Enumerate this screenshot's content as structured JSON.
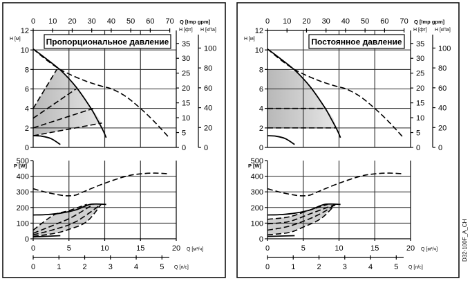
{
  "chart_data": [
    {
      "type": "line",
      "mode": "proportional",
      "title": "Пропорциональное давление",
      "head_chart": {
        "xlabel_top": "Q [Imp gpm]",
        "x_top_ticks": [
          0,
          10,
          20,
          30,
          40,
          50,
          60,
          70
        ],
        "ylabel": "H [м]",
        "y_ticks": [
          0,
          2,
          4,
          6,
          8,
          10,
          12
        ],
        "ylim": [
          0,
          12
        ],
        "xlim_m3h": [
          0,
          20
        ],
        "right_axis_ft": {
          "label": "H [фт]",
          "ticks": [
            0,
            5,
            10,
            15,
            20,
            25,
            30,
            35
          ]
        },
        "right_axis_kpa": {
          "label": "H [кПа]",
          "ticks": [
            0,
            20,
            40,
            60,
            80,
            100
          ]
        },
        "grid": true,
        "series": [
          {
            "name": "max-curve",
            "style": "solid",
            "x": [
              0,
              2,
              4,
              6,
              8,
              9,
              9.8,
              10.2
            ],
            "y": [
              10.1,
              9.0,
              7.8,
              6.2,
              4.1,
              2.8,
              1.7,
              1.0
            ]
          },
          {
            "name": "max-dashed",
            "style": "dashed",
            "x": [
              0,
              2,
              4,
              7,
              9.5,
              11,
              13,
              15,
              17,
              19
            ],
            "y": [
              10.1,
              8.9,
              7.9,
              6.9,
              6.3,
              6.0,
              5.2,
              4.0,
              2.6,
              1.0
            ]
          },
          {
            "name": "min-curve",
            "style": "solid",
            "x": [
              0,
              1.2,
              2.5,
              3.8
            ],
            "y": [
              1.2,
              1.15,
              0.9,
              0.3
            ]
          },
          {
            "name": "prop-1",
            "style": "dashed",
            "x": [
              0,
              3.3
            ],
            "y": [
              4,
              8
            ]
          },
          {
            "name": "prop-2",
            "style": "dashed",
            "x": [
              0,
              6
            ],
            "y": [
              3,
              6
            ]
          },
          {
            "name": "prop-3",
            "style": "dashed",
            "x": [
              0,
              8.4
            ],
            "y": [
              2,
              4
            ]
          },
          {
            "name": "prop-4",
            "style": "dashed",
            "x": [
              0,
              9.6
            ],
            "y": [
              1.2,
              2.5
            ]
          }
        ],
        "shaded_region": {
          "x": [
            0,
            3.3,
            4,
            6,
            8,
            9.2,
            9.6,
            0
          ],
          "y": [
            4,
            8,
            7.8,
            6.2,
            4.1,
            3.0,
            2.5,
            1.2
          ]
        }
      },
      "power_chart": {
        "ylabel": "P [W]",
        "y_ticks": [
          0,
          100,
          200,
          300,
          400,
          500
        ],
        "ylim": [
          0,
          500
        ],
        "xlabel": "Q [м³/ч]",
        "x_ticks": [
          0,
          5,
          10,
          15,
          20
        ],
        "xlim": [
          0,
          20
        ],
        "xlabel2": "Q [л/с]",
        "x2_ticks": [
          0,
          1,
          2,
          3,
          4,
          5
        ],
        "grid": true,
        "series": [
          {
            "name": "max-power-dashed",
            "style": "dashed",
            "x": [
              0,
              2,
              4,
              5,
              6,
              7,
              10,
              13,
              15,
              17,
              19
            ],
            "y": [
              320,
              295,
              278,
              275,
              280,
              300,
              355,
              400,
              415,
              420,
              415
            ]
          },
          {
            "name": "max-power",
            "style": "solid",
            "x": [
              0,
              2,
              4,
              6,
              8,
              10.2
            ],
            "y": [
              152,
              155,
              165,
              185,
              220,
              220
            ]
          },
          {
            "name": "min-power",
            "style": "solid",
            "x": [
              0,
              3.8
            ],
            "y": [
              12,
              20
            ]
          },
          {
            "name": "p-1",
            "style": "dashed",
            "x": [
              0,
              2.8,
              5,
              7.5
            ],
            "y": [
              55,
              150,
              180,
              220
            ]
          },
          {
            "name": "p-2",
            "style": "dashed",
            "x": [
              0,
              3,
              5.5,
              8.4
            ],
            "y": [
              35,
              90,
              140,
              220
            ]
          },
          {
            "name": "p-3",
            "style": "dashed",
            "x": [
              0,
              3,
              6,
              9.5
            ],
            "y": [
              25,
              60,
              110,
              220
            ]
          },
          {
            "name": "p-4",
            "style": "dashed",
            "x": [
              0,
              3,
              5,
              7.5,
              9.5
            ],
            "y": [
              15,
              35,
              60,
              110,
              220
            ]
          }
        ],
        "shaded_region": {
          "x": [
            0,
            2.8,
            5,
            7.5,
            9.5,
            9.5,
            7.5,
            5,
            3,
            0
          ],
          "y": [
            55,
            150,
            180,
            220,
            220,
            220,
            110,
            60,
            35,
            15
          ]
        }
      }
    },
    {
      "type": "line",
      "mode": "constant",
      "title": "Постоянное давление",
      "head_chart": {
        "xlabel_top": "Q [Imp gpm]",
        "x_top_ticks": [
          0,
          10,
          20,
          30,
          40,
          50,
          60,
          70
        ],
        "ylabel": "H [м]",
        "y_ticks": [
          0,
          2,
          4,
          6,
          8,
          10,
          12
        ],
        "ylim": [
          0,
          12
        ],
        "xlim_m3h": [
          0,
          20
        ],
        "right_axis_ft": {
          "label": "H [фт]",
          "ticks": [
            0,
            5,
            10,
            15,
            20,
            25,
            30,
            35
          ]
        },
        "right_axis_kpa": {
          "label": "H [кПа]",
          "ticks": [
            0,
            20,
            40,
            60,
            80,
            100
          ]
        },
        "grid": true,
        "series": [
          {
            "name": "max-curve",
            "style": "solid",
            "x": [
              0,
              2,
              4,
              6,
              8,
              9,
              9.8,
              10.2
            ],
            "y": [
              10.1,
              9.0,
              7.8,
              6.2,
              4.1,
              2.8,
              1.7,
              1.0
            ]
          },
          {
            "name": "max-dashed",
            "style": "dashed",
            "x": [
              0,
              2,
              4,
              7,
              9.5,
              11,
              13,
              15,
              17,
              19
            ],
            "y": [
              10.1,
              8.9,
              7.9,
              6.9,
              6.3,
              6.0,
              5.2,
              4.0,
              2.6,
              1.0
            ]
          },
          {
            "name": "min-curve",
            "style": "solid",
            "x": [
              0,
              1.2,
              2.5,
              3.8
            ],
            "y": [
              1.2,
              1.15,
              0.9,
              0.3
            ]
          },
          {
            "name": "const-1",
            "style": "dashed",
            "x": [
              0,
              8.2
            ],
            "y": [
              4,
              4
            ]
          },
          {
            "name": "const-2",
            "style": "dashed",
            "x": [
              0,
              9.6
            ],
            "y": [
              2,
              2
            ]
          }
        ],
        "shaded_region": {
          "x": [
            0,
            2.6,
            4,
            6,
            8,
            9.2,
            9.6,
            0
          ],
          "y": [
            8,
            8,
            7.8,
            6.2,
            4.1,
            3.0,
            2.0,
            2.0
          ]
        }
      },
      "power_chart": {
        "ylabel": "P [W]",
        "y_ticks": [
          0,
          100,
          200,
          300,
          400,
          500
        ],
        "ylim": [
          0,
          500
        ],
        "xlabel": "Q [м³/ч]",
        "x_ticks": [
          0,
          5,
          10,
          15,
          20
        ],
        "xlim": [
          0,
          20
        ],
        "xlabel2": "Q [л/с]",
        "x2_ticks": [
          0,
          1,
          2,
          3,
          4,
          5
        ],
        "grid": true,
        "series": [
          {
            "name": "max-power-dashed",
            "style": "dashed",
            "x": [
              0,
              2,
              4,
              5,
              6,
              7,
              10,
              13,
              15,
              17,
              19
            ],
            "y": [
              320,
              295,
              278,
              275,
              280,
              300,
              355,
              400,
              415,
              420,
              415
            ]
          },
          {
            "name": "max-power",
            "style": "solid",
            "x": [
              0,
              2,
              4,
              6,
              8,
              10.2
            ],
            "y": [
              152,
              155,
              165,
              185,
              220,
              220
            ]
          },
          {
            "name": "min-power",
            "style": "solid",
            "x": [
              0,
              3.8
            ],
            "y": [
              15,
              20
            ]
          },
          {
            "name": "p-1",
            "style": "dashed",
            "x": [
              0,
              3,
              6,
              8.4
            ],
            "y": [
              125,
              140,
              185,
              220
            ]
          },
          {
            "name": "p-2",
            "style": "dashed",
            "x": [
              0,
              3,
              6,
              9.5
            ],
            "y": [
              95,
              110,
              160,
              220
            ]
          },
          {
            "name": "p-3",
            "style": "dashed",
            "x": [
              0,
              3,
              6,
              8,
              9.5
            ],
            "y": [
              55,
              80,
              130,
              175,
              220
            ]
          },
          {
            "name": "p-4",
            "style": "dashed",
            "x": [
              0,
              3,
              5,
              7.5,
              9.5
            ],
            "y": [
              25,
              40,
              75,
              130,
              220
            ]
          }
        ],
        "shaded_region": {
          "x": [
            0,
            3,
            6,
            8.4,
            9.5,
            9.5,
            7.5,
            5,
            3,
            0
          ],
          "y": [
            125,
            140,
            185,
            220,
            220,
            220,
            130,
            75,
            40,
            25
          ]
        }
      }
    }
  ],
  "figure_code": "D32-100F_A_CH"
}
